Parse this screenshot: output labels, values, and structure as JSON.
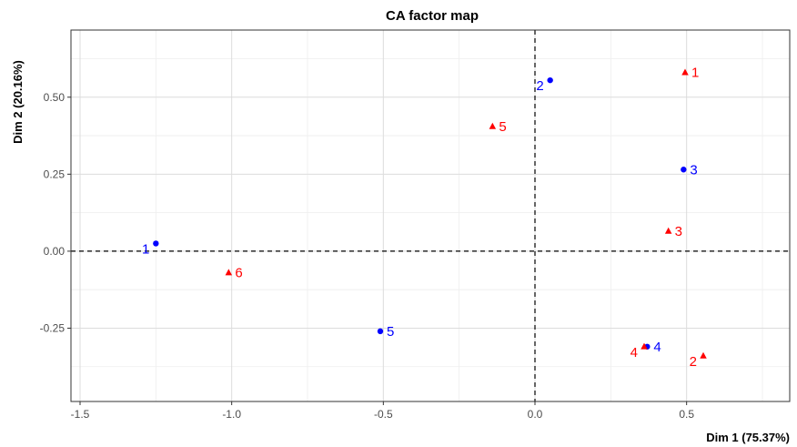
{
  "chart_data": {
    "type": "scatter",
    "title": "CA factor map",
    "xlabel": "Dim 1 (75.37%)",
    "ylabel": "Dim 2 (20.16%)",
    "xlim": [
      -1.53,
      0.84
    ],
    "ylim": [
      -0.488,
      0.718
    ],
    "x_ticks": [
      -1.5,
      -1.0,
      -0.5,
      0.0,
      0.5
    ],
    "x_tick_labels": [
      "-1.5",
      "-1.0",
      "-0.5",
      "0.0",
      "0.5"
    ],
    "y_ticks": [
      -0.25,
      0.0,
      0.25,
      0.5
    ],
    "y_tick_labels": [
      "-0.25",
      "0.00",
      "0.25",
      "0.50"
    ],
    "grid": true,
    "reference_lines": {
      "x": 0,
      "y": 0
    },
    "series": [
      {
        "color": "#0000ff",
        "marker": "circle",
        "points": [
          {
            "label": "1",
            "x": -1.25,
            "y": 0.025,
            "label_pos": "left-below"
          },
          {
            "label": "2",
            "x": 0.05,
            "y": 0.555,
            "label_pos": "left-below"
          },
          {
            "label": "3",
            "x": 0.49,
            "y": 0.265,
            "label_pos": "right"
          },
          {
            "label": "4",
            "x": 0.37,
            "y": -0.31,
            "label_pos": "right"
          },
          {
            "label": "5",
            "x": -0.51,
            "y": -0.26,
            "label_pos": "right"
          }
        ]
      },
      {
        "color": "#ff0000",
        "marker": "triangle",
        "points": [
          {
            "label": "1",
            "x": 0.495,
            "y": 0.58,
            "label_pos": "right"
          },
          {
            "label": "2",
            "x": 0.555,
            "y": -0.34,
            "label_pos": "left-below"
          },
          {
            "label": "3",
            "x": 0.44,
            "y": 0.065,
            "label_pos": "right"
          },
          {
            "label": "4",
            "x": 0.36,
            "y": -0.31,
            "label_pos": "left-below"
          },
          {
            "label": "5",
            "x": -0.14,
            "y": 0.405,
            "label_pos": "right"
          },
          {
            "label": "6",
            "x": -1.01,
            "y": -0.07,
            "label_pos": "right"
          }
        ]
      }
    ]
  }
}
